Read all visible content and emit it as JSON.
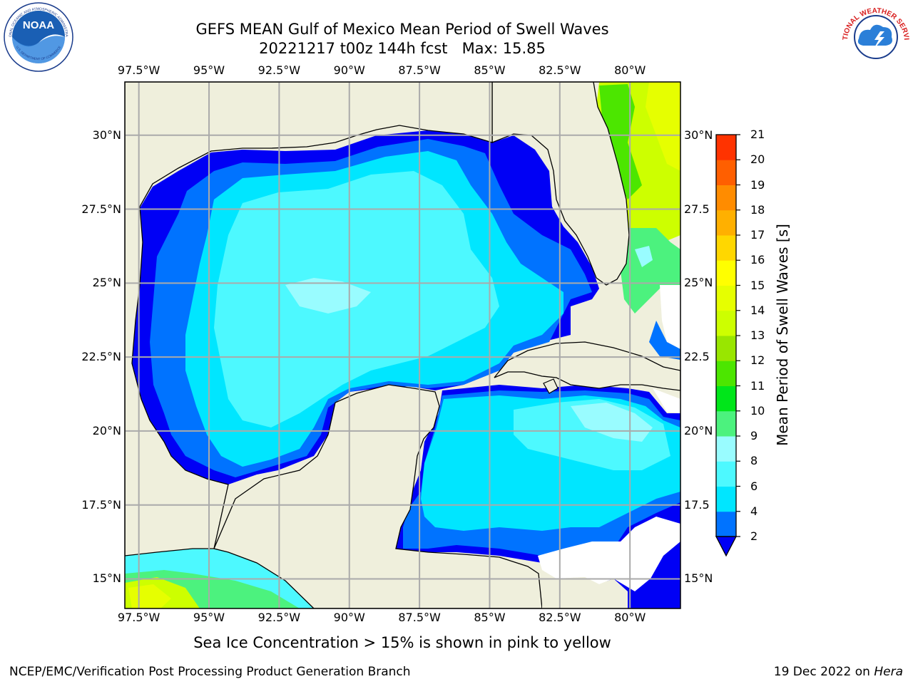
{
  "title": "GEFS MEAN Gulf of Mexico Mean Period of Swell Waves",
  "subtitle": "20221217 t00z 144h fcst   Max: 15.85",
  "map": {
    "lon_labels": [
      "97.5°W",
      "95°W",
      "92.5°W",
      "90°W",
      "87.5°W",
      "85°W",
      "82.5°W",
      "80°W"
    ],
    "lat_labels_left": [
      "30°N",
      "27.5°N",
      "25°N",
      "22.5°N",
      "20°N",
      "17.5°N",
      "15°N"
    ],
    "lat_labels_right": [
      "30°N",
      "27.5",
      "25°N",
      "22.5",
      "20°N",
      "17.5",
      "15°N"
    ],
    "lon_values": [
      -97.5,
      -95,
      -92.5,
      -90,
      -87.5,
      -85,
      -82.5,
      -80
    ],
    "lat_values": [
      30,
      27.5,
      25,
      22.5,
      20,
      17.5,
      15
    ],
    "extent": {
      "lon_min": -98.0,
      "lon_max": -78.2,
      "lat_min": 14.0,
      "lat_max": 31.8
    },
    "land_color": "#efefdc",
    "grid_color": "#aaaaaa"
  },
  "colorbar": {
    "title": "Mean Period of Swell Waves [s]",
    "levels": [
      2,
      4,
      6,
      8,
      9,
      10,
      11,
      12,
      13,
      14,
      15,
      16,
      17,
      18,
      19,
      20,
      21
    ],
    "labels": [
      "2",
      "4",
      "6",
      "8",
      "9",
      "10",
      "11",
      "12",
      "13",
      "14",
      "15",
      "16",
      "17",
      "18",
      "19",
      "20",
      "21"
    ],
    "colors": [
      "#0073ff",
      "#00e6ff",
      "#4df9ff",
      "#99fcff",
      "#4cf27e",
      "#00e61a",
      "#4ce600",
      "#99e600",
      "#cdff00",
      "#e6ff00",
      "#ffff00",
      "#ffd700",
      "#ffb000",
      "#ff8c00",
      "#ff5f00",
      "#ff3300"
    ],
    "under_color": "#0000f5"
  },
  "ice_note": "Sea Ice Concentration > 15% is shown in pink to yellow",
  "footer": {
    "left": "NCEP/EMC/Verification Post Processing Product Generation Branch",
    "right_date": "19 Dec 2022 on ",
    "right_system": "Hera"
  },
  "logos": {
    "left": {
      "name": "NOAA",
      "ring_text": "NATIONAL OCEANIC AND ATMOSPHERIC ADMINISTRATION",
      "bottom_text": "U.S. DEPARTMENT OF COMMERCE"
    },
    "right": {
      "ring_text": "NATIONAL WEATHER SERVICE"
    }
  }
}
